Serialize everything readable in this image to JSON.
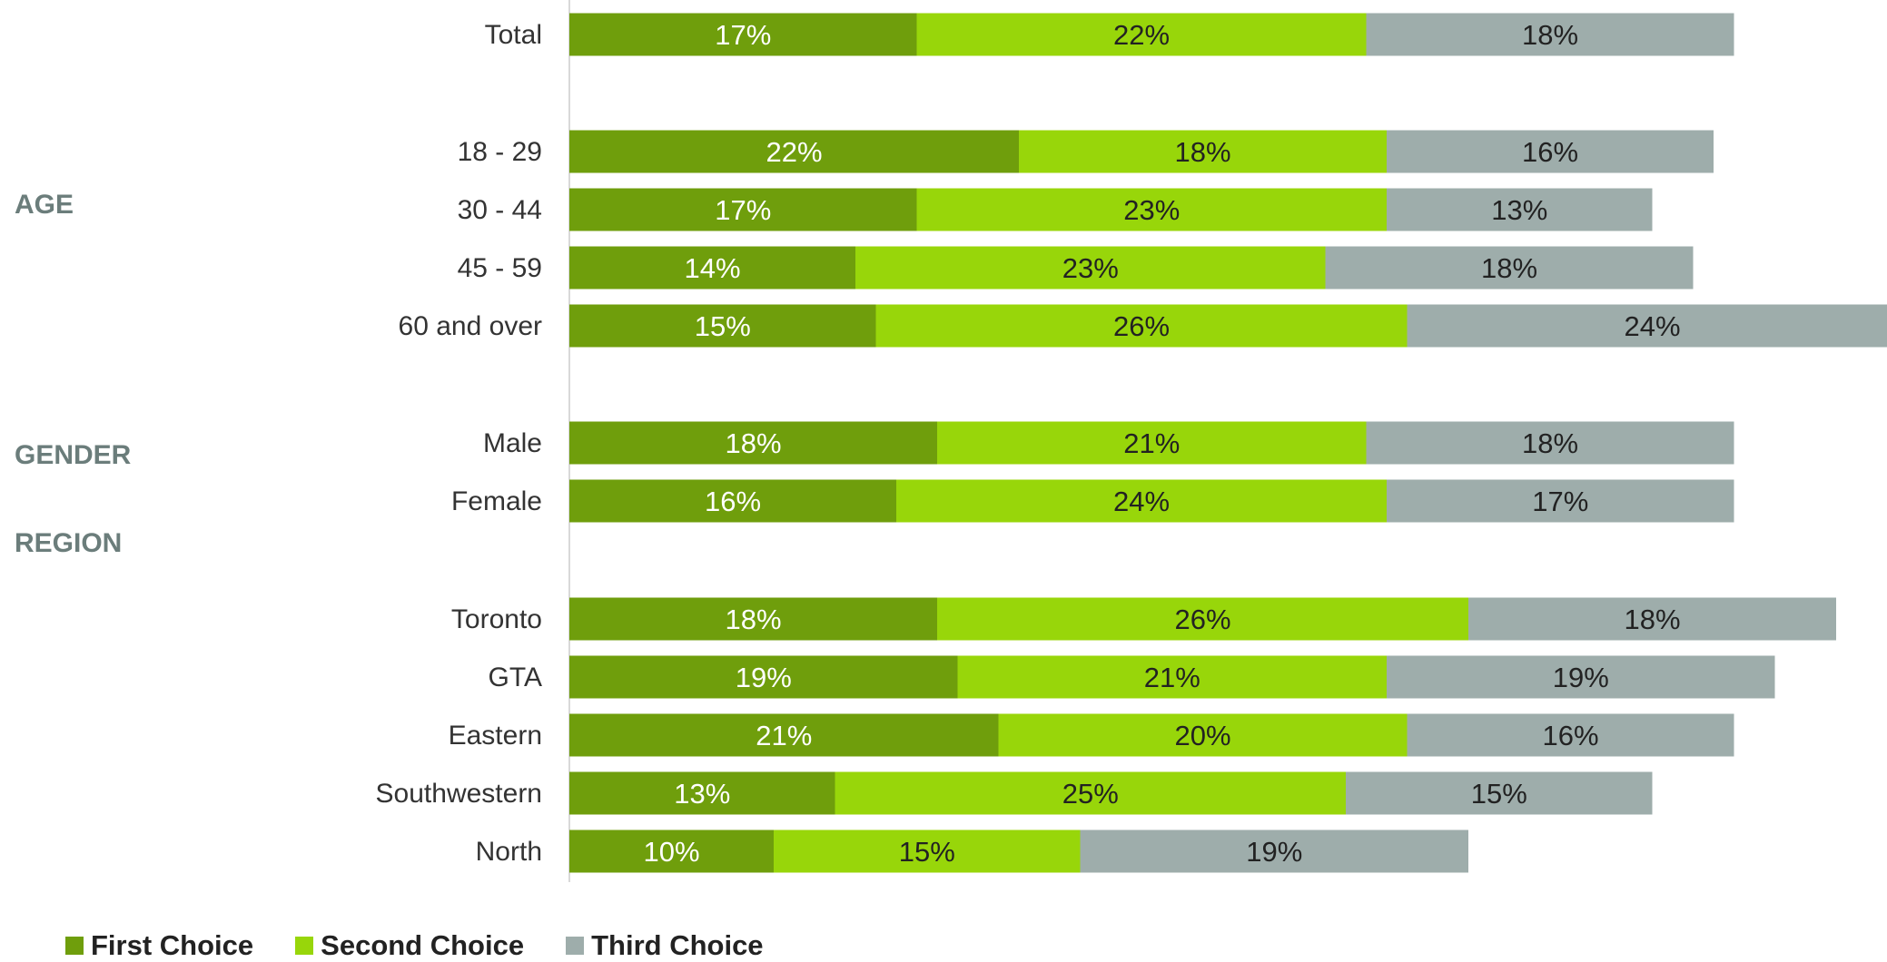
{
  "chart_data": {
    "type": "bar",
    "orientation": "horizontal",
    "stacked": true,
    "categories": [
      "Total",
      "18 - 29",
      "30 - 44",
      "45 - 59",
      "60 and over",
      "Male",
      "Female",
      "Toronto",
      "GTA",
      "Eastern",
      "Southwestern",
      "North"
    ],
    "groups": [
      {
        "label": "",
        "categories": [
          "Total"
        ]
      },
      {
        "label": "AGE",
        "categories": [
          "18 - 29",
          "30 - 44",
          "45 - 59",
          "60 and over"
        ]
      },
      {
        "label": "GENDER",
        "categories": [
          "Male",
          "Female"
        ]
      },
      {
        "label": "REGION",
        "categories": [
          "Toronto",
          "GTA",
          "Eastern",
          "Southwestern",
          "North"
        ]
      }
    ],
    "series": [
      {
        "name": "First Choice",
        "color": "#6f9e0c",
        "label_color": "#ffffff",
        "values": [
          17,
          22,
          17,
          14,
          15,
          18,
          16,
          18,
          19,
          21,
          13,
          10
        ],
        "labels": [
          "17%",
          "22%",
          "17%",
          "14%",
          "15%",
          "18%",
          "16%",
          "18%",
          "19%",
          "21%",
          "13%",
          "10%"
        ]
      },
      {
        "name": "Second Choice",
        "color": "#98d60a",
        "label_color": "#222222",
        "values": [
          22,
          18,
          23,
          23,
          26,
          21,
          24,
          26,
          21,
          20,
          25,
          15
        ],
        "labels": [
          "22%",
          "18%",
          "23%",
          "23%",
          "26%",
          "21%",
          "24%",
          "26%",
          "21%",
          "20%",
          "25%",
          "15%"
        ]
      },
      {
        "name": "Third Choice",
        "color": "#9eadab",
        "label_color": "#222222",
        "values": [
          18,
          16,
          13,
          18,
          24,
          18,
          17,
          18,
          19,
          16,
          15,
          19
        ],
        "labels": [
          "18%",
          "16%",
          "13%",
          "18%",
          "24%",
          "18%",
          "17%",
          "18%",
          "19%",
          "16%",
          "15%",
          "19%"
        ]
      }
    ],
    "legend_position": "bottom-left",
    "grid": false
  }
}
